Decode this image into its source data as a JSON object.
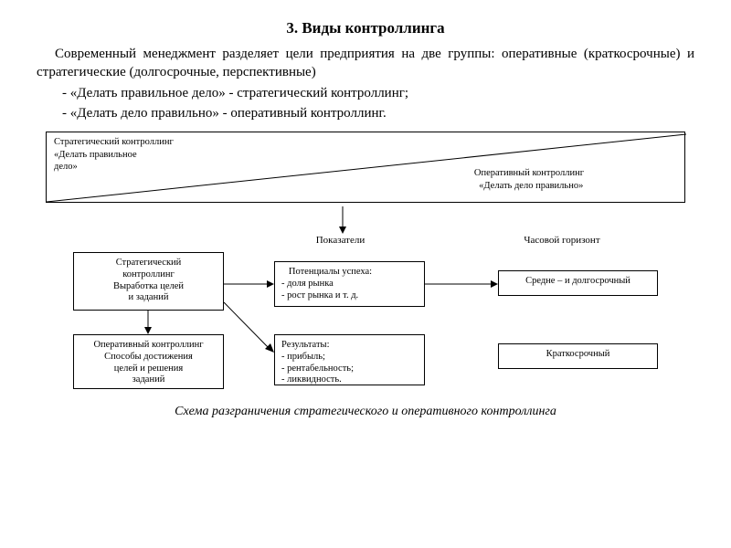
{
  "title": "3.  Виды  контроллинга",
  "paragraph": "Современный менеджмент разделяет цели предприятия на две группы: оперативные (краткосрочные) и стратегические (долгосрочные, перспективные)",
  "bullet1": "- «Делать правильное дело» - стратегический контроллинг;",
  "bullet2": "- «Делать дело правильно» - оперативный контроллинг.",
  "trapezoid": {
    "left_line1": "Стратегический контроллинг",
    "left_line2": "«Делать правильное",
    "left_line3": "дело»",
    "right_line1": "Оперативный  контроллинг",
    "right_line2": "«Делать дело правильно»"
  },
  "headers": {
    "col2": "Показатели",
    "col3": "Часовой горизонт"
  },
  "boxes": {
    "strat": "Стратегический\nконтроллинг\nВыработка целей\nи заданий",
    "ops": "Оперативный контроллинг\nСпособы достижения\nцелей и решения\nзаданий",
    "pot_title": "Потенциалы успеха:",
    "pot_l2": "- доля рынка",
    "pot_l3": "- рост  рынка и т. д.",
    "res_title": "Результаты:",
    "res_l2": "- прибыль;",
    "res_l3": "- рентабельность;",
    "res_l4": "- ликвидность.",
    "mid": "Средне – и долгосрочный",
    "short": "Краткосрочный"
  },
  "caption": "Схема разграничения стратегического и оперативного контроллинга",
  "colors": {
    "text": "#000000",
    "bg": "#ffffff",
    "border": "#000000"
  }
}
